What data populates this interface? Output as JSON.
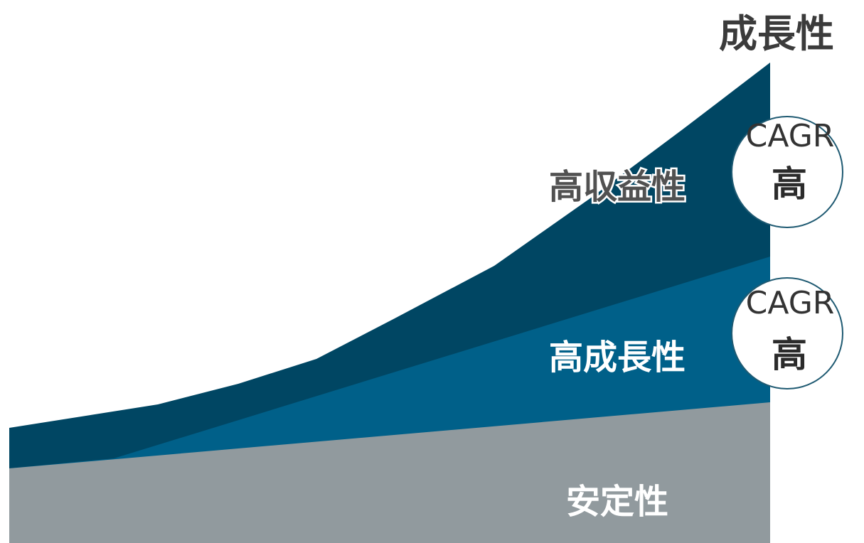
{
  "title": "成長性",
  "layers": {
    "top": {
      "label": "高収益性",
      "color": "#004663"
    },
    "middle": {
      "label": "高成長性",
      "color": "#006089"
    },
    "bottom": {
      "label": "安定性",
      "color": "#919a9e"
    }
  },
  "badges": [
    {
      "top": "CAGR",
      "bottom": "高"
    },
    {
      "top": "CAGR",
      "bottom": "高"
    }
  ],
  "colors": {
    "badge_border": "#1f5a72",
    "background": "#ffffff"
  }
}
